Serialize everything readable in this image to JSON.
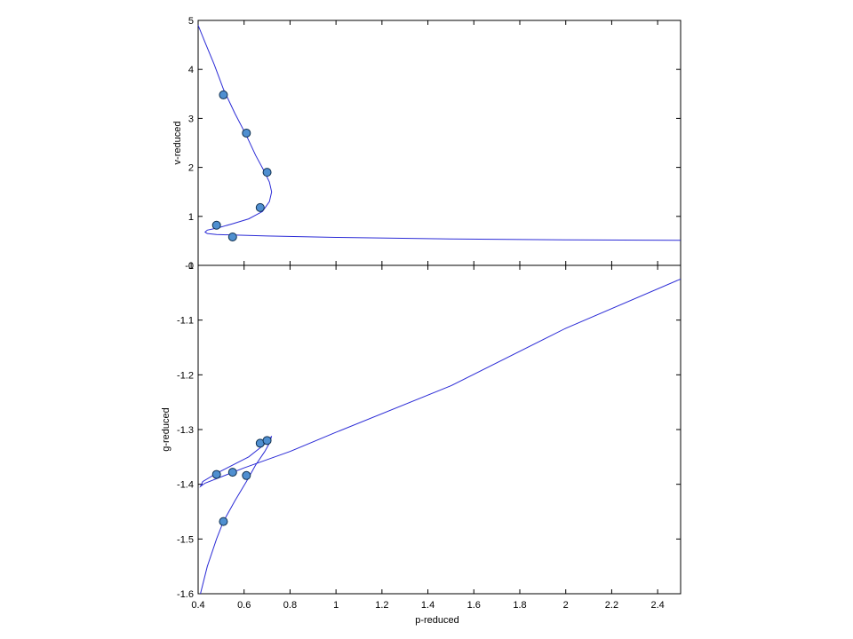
{
  "chart_data": [
    {
      "type": "line",
      "xlabel": "",
      "ylabel": "v-reduced",
      "xlim": [
        0.4,
        2.5
      ],
      "ylim": [
        0,
        5
      ],
      "xticks": [],
      "yticks": [
        "0",
        "1",
        "2",
        "3",
        "4",
        "5"
      ],
      "curve": {
        "x": [
          0.4,
          0.43,
          0.47,
          0.51,
          0.56,
          0.61,
          0.65,
          0.69,
          0.71,
          0.72,
          0.71,
          0.68,
          0.62,
          0.55,
          0.49,
          0.44,
          0.43,
          0.44,
          0.48,
          0.55,
          0.7,
          1.0,
          1.5,
          2.0,
          2.5
        ],
        "y": [
          4.9,
          4.55,
          4.1,
          3.6,
          3.1,
          2.65,
          2.25,
          1.9,
          1.7,
          1.5,
          1.3,
          1.1,
          0.95,
          0.85,
          0.77,
          0.72,
          0.68,
          0.65,
          0.63,
          0.62,
          0.6,
          0.57,
          0.54,
          0.52,
          0.51
        ]
      },
      "points": {
        "x": [
          0.51,
          0.61,
          0.7,
          0.67,
          0.48,
          0.55
        ],
        "y": [
          3.48,
          2.7,
          1.9,
          1.18,
          0.82,
          0.58
        ]
      }
    },
    {
      "type": "line",
      "xlabel": "p-reduced",
      "ylabel": "g-reduced",
      "xlim": [
        0.4,
        2.5
      ],
      "ylim": [
        -1.6,
        -1.0
      ],
      "xticks": [
        "0.4",
        "0.6",
        "0.8",
        "1",
        "1.2",
        "1.4",
        "1.6",
        "1.8",
        "2",
        "2.2",
        "2.4"
      ],
      "yticks": [
        "-1.6",
        "-1.5",
        "-1.4",
        "-1.3",
        "-1.2",
        "-1.1",
        "-1"
      ],
      "curve": {
        "x": [
          0.41,
          0.44,
          0.48,
          0.51,
          0.56,
          0.61,
          0.65,
          0.69,
          0.71,
          0.72,
          0.71,
          0.68,
          0.62,
          0.55,
          0.48,
          0.42,
          0.41,
          0.43,
          0.6,
          0.8,
          1.0,
          1.5,
          2.0,
          2.5
        ],
        "y": [
          -1.6,
          -1.55,
          -1.5,
          -1.468,
          -1.43,
          -1.395,
          -1.365,
          -1.34,
          -1.325,
          -1.312,
          -1.318,
          -1.33,
          -1.35,
          -1.365,
          -1.38,
          -1.395,
          -1.404,
          -1.398,
          -1.37,
          -1.34,
          -1.305,
          -1.22,
          -1.115,
          -1.025
        ]
      },
      "points": {
        "x": [
          0.48,
          0.55,
          0.61,
          0.51,
          0.67,
          0.7
        ],
        "y": [
          -1.382,
          -1.378,
          -1.384,
          -1.468,
          -1.325,
          -1.32
        ]
      }
    }
  ]
}
